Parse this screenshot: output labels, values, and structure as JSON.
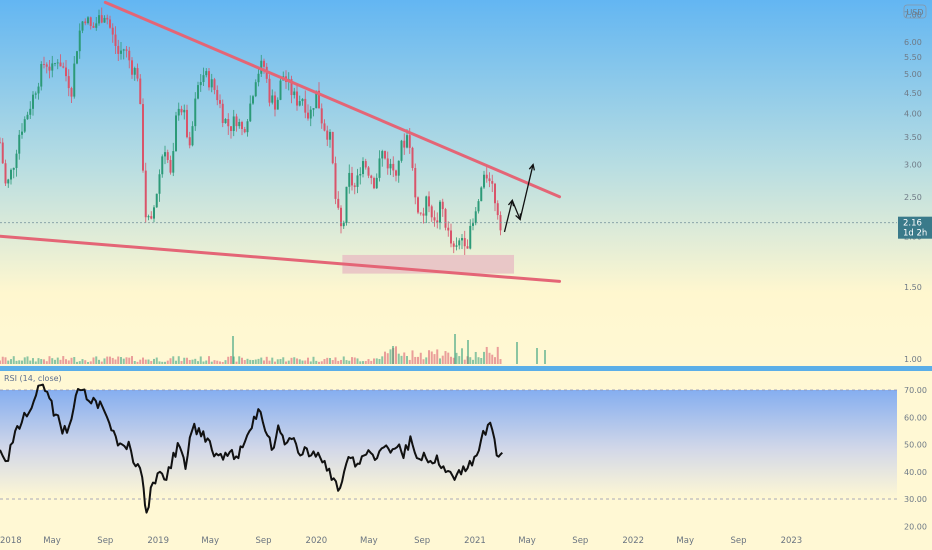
{
  "currency_badge": "USD",
  "price_label": {
    "value": "2.16",
    "countdown": "1d 2h",
    "color": "#3a7a8a"
  },
  "colors": {
    "up": "#2c9a78",
    "down": "#d9546a",
    "trendline": "#e46576",
    "rsi_line": "#111111",
    "arrow": "#111111",
    "support_zone": "#e8bfc4",
    "pane_divider": "#5aaee8"
  },
  "price_axis": {
    "type": "log",
    "ticks": [
      "7.00",
      "6.00",
      "5.50",
      "5.00",
      "4.50",
      "4.00",
      "3.50",
      "3.00",
      "2.50",
      "2.00",
      "1.50",
      "1.00"
    ]
  },
  "rsi": {
    "label": "RSI (14, close)",
    "ticks": [
      "70.00",
      "60.00",
      "50.00",
      "40.00",
      "30.00",
      "20.00"
    ],
    "ylim": [
      20,
      80
    ],
    "upper": 70,
    "lower": 30
  },
  "x_axis": {
    "ticks": [
      "2018",
      "May",
      "Sep",
      "2019",
      "May",
      "Sep",
      "2020",
      "May",
      "Sep",
      "2021",
      "May",
      "Sep",
      "2022",
      "May",
      "Sep",
      "2023"
    ]
  },
  "chart_data": {
    "type": "candlestick",
    "x_range": [
      "2018-01",
      "2023-01"
    ],
    "y_scale": "log",
    "ylim": [
      1.0,
      7.6
    ],
    "price_path": [
      [
        "2018-01-01",
        3.4
      ],
      [
        "2018-01-15",
        2.6
      ],
      [
        "2018-02-01",
        3.0
      ],
      [
        "2018-02-15",
        3.6
      ],
      [
        "2018-03-01",
        3.9
      ],
      [
        "2018-03-15",
        4.3
      ],
      [
        "2018-04-01",
        4.9
      ],
      [
        "2018-04-15",
        5.4
      ],
      [
        "2018-05-01",
        5.1
      ],
      [
        "2018-05-15",
        5.5
      ],
      [
        "2018-06-01",
        5.0
      ],
      [
        "2018-06-15",
        4.6
      ],
      [
        "2018-07-01",
        6.2
      ],
      [
        "2018-07-15",
        7.0
      ],
      [
        "2018-08-01",
        6.4
      ],
      [
        "2018-08-15",
        6.8
      ],
      [
        "2018-09-01",
        7.1
      ],
      [
        "2018-09-15",
        6.3
      ],
      [
        "2018-10-01",
        5.6
      ],
      [
        "2018-10-15",
        5.8
      ],
      [
        "2018-11-01",
        5.2
      ],
      [
        "2018-11-15",
        5.0
      ],
      [
        "2018-12-01",
        2.3
      ],
      [
        "2018-12-15",
        2.1
      ],
      [
        "2019-01-01",
        2.7
      ],
      [
        "2019-01-15",
        3.4
      ],
      [
        "2019-02-01",
        2.7
      ],
      [
        "2019-02-15",
        4.3
      ],
      [
        "2019-03-01",
        4.0
      ],
      [
        "2019-03-15",
        3.2
      ],
      [
        "2019-04-01",
        4.6
      ],
      [
        "2019-04-15",
        5.0
      ],
      [
        "2019-05-01",
        4.8
      ],
      [
        "2019-05-15",
        4.5
      ],
      [
        "2019-06-01",
        3.9
      ],
      [
        "2019-06-15",
        3.7
      ],
      [
        "2019-07-01",
        3.9
      ],
      [
        "2019-07-15",
        3.6
      ],
      [
        "2019-08-01",
        4.2
      ],
      [
        "2019-08-15",
        5.0
      ],
      [
        "2019-09-01",
        5.3
      ],
      [
        "2019-09-15",
        4.4
      ],
      [
        "2019-10-01",
        4.2
      ],
      [
        "2019-10-15",
        5.0
      ],
      [
        "2019-11-01",
        4.6
      ],
      [
        "2019-11-15",
        4.3
      ],
      [
        "2019-12-01",
        4.4
      ],
      [
        "2019-12-15",
        3.9
      ],
      [
        "2020-01-01",
        4.5
      ],
      [
        "2020-01-15",
        3.8
      ],
      [
        "2020-02-01",
        3.5
      ],
      [
        "2020-02-15",
        2.4
      ],
      [
        "2020-03-01",
        2.0
      ],
      [
        "2020-03-15",
        2.8
      ],
      [
        "2020-04-01",
        2.6
      ],
      [
        "2020-04-15",
        3.1
      ],
      [
        "2020-05-01",
        2.9
      ],
      [
        "2020-05-15",
        2.7
      ],
      [
        "2020-06-01",
        3.2
      ],
      [
        "2020-06-15",
        3.0
      ],
      [
        "2020-07-01",
        2.9
      ],
      [
        "2020-07-15",
        3.3
      ],
      [
        "2020-08-01",
        3.6
      ],
      [
        "2020-08-15",
        2.5
      ],
      [
        "2020-09-01",
        2.2
      ],
      [
        "2020-09-15",
        2.5
      ],
      [
        "2020-10-01",
        2.1
      ],
      [
        "2020-10-15",
        2.4
      ],
      [
        "2020-11-01",
        2.0
      ],
      [
        "2020-11-15",
        1.8
      ],
      [
        "2020-12-01",
        2.0
      ],
      [
        "2020-12-15",
        1.95
      ],
      [
        "2021-01-01",
        2.2
      ],
      [
        "2021-01-15",
        2.6
      ],
      [
        "2021-02-01",
        2.9
      ],
      [
        "2021-02-15",
        2.5
      ],
      [
        "2021-03-01",
        2.16
      ]
    ],
    "rsi_path": [
      [
        "2018-01-01",
        48
      ],
      [
        "2018-01-20",
        44
      ],
      [
        "2018-02-05",
        55
      ],
      [
        "2018-02-20",
        58
      ],
      [
        "2018-03-10",
        62
      ],
      [
        "2018-03-25",
        68
      ],
      [
        "2018-04-10",
        72
      ],
      [
        "2018-04-25",
        67
      ],
      [
        "2018-05-10",
        61
      ],
      [
        "2018-05-25",
        54
      ],
      [
        "2018-06-10",
        57
      ],
      [
        "2018-06-25",
        68
      ],
      [
        "2018-07-10",
        70
      ],
      [
        "2018-07-25",
        66
      ],
      [
        "2018-08-10",
        66
      ],
      [
        "2018-08-25",
        64
      ],
      [
        "2018-09-10",
        58
      ],
      [
        "2018-09-25",
        53
      ],
      [
        "2018-10-10",
        50
      ],
      [
        "2018-10-25",
        51
      ],
      [
        "2018-11-10",
        42
      ],
      [
        "2018-11-25",
        38
      ],
      [
        "2018-12-05",
        25
      ],
      [
        "2018-12-20",
        36
      ],
      [
        "2019-01-05",
        40
      ],
      [
        "2019-01-20",
        37
      ],
      [
        "2019-02-05",
        47
      ],
      [
        "2019-02-20",
        49
      ],
      [
        "2019-03-05",
        41
      ],
      [
        "2019-03-20",
        55
      ],
      [
        "2019-04-05",
        56
      ],
      [
        "2019-04-20",
        51
      ],
      [
        "2019-05-05",
        48
      ],
      [
        "2019-05-20",
        46
      ],
      [
        "2019-06-05",
        47
      ],
      [
        "2019-06-20",
        48
      ],
      [
        "2019-07-05",
        45
      ],
      [
        "2019-07-20",
        51
      ],
      [
        "2019-08-05",
        56
      ],
      [
        "2019-08-20",
        63
      ],
      [
        "2019-09-05",
        55
      ],
      [
        "2019-09-20",
        48
      ],
      [
        "2019-10-05",
        57
      ],
      [
        "2019-10-20",
        50
      ],
      [
        "2019-11-05",
        52
      ],
      [
        "2019-11-20",
        47
      ],
      [
        "2019-12-05",
        49
      ],
      [
        "2019-12-20",
        46
      ],
      [
        "2020-01-05",
        47
      ],
      [
        "2020-01-20",
        44
      ],
      [
        "2020-02-05",
        37
      ],
      [
        "2020-02-20",
        33
      ],
      [
        "2020-03-05",
        40
      ],
      [
        "2020-03-20",
        45
      ],
      [
        "2020-04-05",
        43
      ],
      [
        "2020-04-20",
        46
      ],
      [
        "2020-05-05",
        47
      ],
      [
        "2020-05-20",
        45
      ],
      [
        "2020-06-05",
        49
      ],
      [
        "2020-06-20",
        47
      ],
      [
        "2020-07-05",
        49
      ],
      [
        "2020-07-20",
        45
      ],
      [
        "2020-08-05",
        53
      ],
      [
        "2020-08-20",
        45
      ],
      [
        "2020-09-05",
        47
      ],
      [
        "2020-09-20",
        44
      ],
      [
        "2020-10-05",
        46
      ],
      [
        "2020-10-20",
        42
      ],
      [
        "2020-11-05",
        40
      ],
      [
        "2020-11-20",
        39
      ],
      [
        "2020-12-05",
        42
      ],
      [
        "2020-12-20",
        44
      ],
      [
        "2021-01-05",
        46
      ],
      [
        "2021-01-20",
        55
      ],
      [
        "2021-02-05",
        58
      ],
      [
        "2021-02-20",
        46
      ],
      [
        "2021-03-05",
        47
      ]
    ],
    "volume_scale": "relative",
    "annotations": {
      "upper_trendline": [
        [
          "2018-09-01",
          7.5
        ],
        [
          "2021-07-15",
          2.5
        ]
      ],
      "lower_trendline": [
        [
          "2018-01-01",
          2.0
        ],
        [
          "2021-07-15",
          1.55
        ]
      ],
      "support_zone": {
        "from": "2020-03-01",
        "to": "2021-04-01",
        "low": 1.62,
        "high": 1.8
      },
      "projection_arrows": [
        [
          [
            "2021-03-10",
            2.05
          ],
          [
            "2021-03-28",
            2.45
          ]
        ],
        [
          [
            "2021-03-28",
            2.45
          ],
          [
            "2021-04-15",
            2.2
          ]
        ],
        [
          [
            "2021-04-15",
            2.2
          ],
          [
            "2021-05-15",
            3.0
          ]
        ]
      ]
    }
  }
}
